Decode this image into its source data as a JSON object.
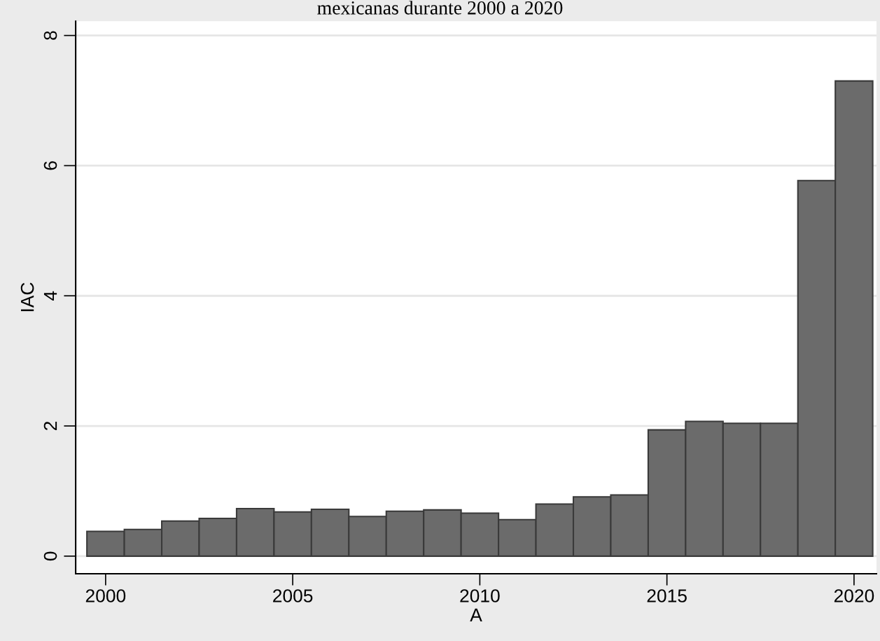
{
  "chart_data": {
    "type": "bar",
    "title": "mexicanas durante 2000 a 2020",
    "xlabel": "A",
    "ylabel": "IAC",
    "x": [
      2000,
      2001,
      2002,
      2003,
      2004,
      2005,
      2006,
      2007,
      2008,
      2009,
      2010,
      2011,
      2012,
      2013,
      2014,
      2015,
      2016,
      2017,
      2018,
      2019,
      2020
    ],
    "values": [
      0.38,
      0.41,
      0.54,
      0.58,
      0.73,
      0.68,
      0.72,
      0.61,
      0.69,
      0.71,
      0.66,
      0.56,
      0.8,
      0.91,
      0.94,
      1.94,
      2.07,
      2.04,
      2.04,
      5.77,
      7.3
    ],
    "color": "#6b6b6b",
    "xlim": [
      1999.2,
      2020.6
    ],
    "xticks": [
      2000,
      2005,
      2010,
      2015,
      2020
    ],
    "ylim": [
      -0.27,
      8.22
    ],
    "yticks": [
      0,
      2,
      4,
      6,
      8
    ],
    "grid": "y"
  }
}
